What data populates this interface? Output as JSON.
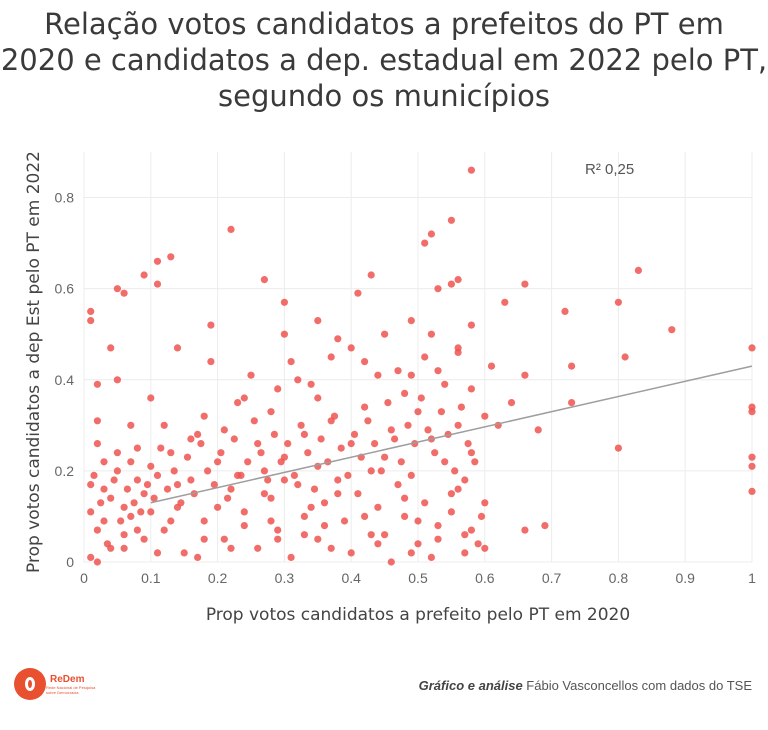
{
  "title_lines": [
    "Relação votos candidatos a prefeitos do PT em",
    "2020 e candidatos a dep. estadual em 2022 pelo PT,",
    "segundo os municípios"
  ],
  "credit": {
    "bold": "Gráfico e análise",
    "rest": " Fábio Vasconcellos com dados do TSE"
  },
  "logo": {
    "name": "ReDem",
    "sub": "Rede Nacional de Pesquisa sobre Democracia"
  },
  "colors": {
    "point": "#ef5350",
    "trend": "#9e9e9e",
    "grid": "#ececec",
    "brand": "#e8502f"
  },
  "chart_data": {
    "type": "scatter",
    "xlabel": "Prop votos candidatos a prefeito pelo PT em 2020",
    "ylabel": "Prop votos candidatos a dep Est pelo PT em 2022",
    "xlim": [
      0,
      1
    ],
    "ylim": [
      0,
      0.9
    ],
    "xticks": [
      0,
      0.1,
      0.2,
      0.3,
      0.4,
      0.5,
      0.6,
      0.7,
      0.8,
      0.9,
      1
    ],
    "xtick_labels": [
      "0",
      "0.1",
      "0.2",
      "0.3",
      "0.4",
      "0.5",
      "0.6",
      "0.7",
      "0.8",
      "0.9",
      "1"
    ],
    "yticks": [
      0,
      0.2,
      0.4,
      0.6,
      0.8
    ],
    "ytick_labels": [
      "0",
      "0.2",
      "0.4",
      "0.6",
      "0.8"
    ],
    "grid": true,
    "annotation": "R² 0,25",
    "trendline": {
      "x": [
        0.1,
        1.0
      ],
      "y": [
        0.13,
        0.43
      ]
    },
    "points": [
      [
        0.58,
        0.86
      ],
      [
        0.22,
        0.73
      ],
      [
        0.55,
        0.75
      ],
      [
        0.52,
        0.72
      ],
      [
        0.51,
        0.7
      ],
      [
        0.13,
        0.67
      ],
      [
        0.11,
        0.66
      ],
      [
        0.83,
        0.64
      ],
      [
        0.09,
        0.63
      ],
      [
        0.27,
        0.62
      ],
      [
        0.43,
        0.63
      ],
      [
        0.56,
        0.62
      ],
      [
        0.05,
        0.6
      ],
      [
        0.11,
        0.61
      ],
      [
        0.66,
        0.61
      ],
      [
        0.06,
        0.59
      ],
      [
        0.41,
        0.59
      ],
      [
        0.53,
        0.6
      ],
      [
        0.55,
        0.61
      ],
      [
        0.63,
        0.57
      ],
      [
        0.8,
        0.57
      ],
      [
        0.3,
        0.57
      ],
      [
        0.01,
        0.55
      ],
      [
        0.72,
        0.55
      ],
      [
        0.01,
        0.53
      ],
      [
        0.19,
        0.52
      ],
      [
        0.35,
        0.53
      ],
      [
        0.49,
        0.53
      ],
      [
        0.58,
        0.52
      ],
      [
        0.88,
        0.51
      ],
      [
        0.3,
        0.5
      ],
      [
        0.38,
        0.49
      ],
      [
        0.45,
        0.5
      ],
      [
        0.52,
        0.5
      ],
      [
        0.14,
        0.47
      ],
      [
        0.4,
        0.47
      ],
      [
        0.56,
        0.46
      ],
      [
        1.0,
        0.47
      ],
      [
        0.04,
        0.47
      ],
      [
        0.81,
        0.45
      ],
      [
        0.73,
        0.43
      ],
      [
        0.66,
        0.41
      ],
      [
        0.05,
        0.4
      ],
      [
        0.02,
        0.39
      ],
      [
        0.32,
        0.4
      ],
      [
        0.44,
        0.41
      ],
      [
        0.61,
        0.43
      ],
      [
        0.54,
        0.39
      ],
      [
        0.58,
        0.38
      ],
      [
        0.24,
        0.36
      ],
      [
        0.35,
        0.36
      ],
      [
        0.48,
        0.37
      ],
      [
        0.1,
        0.36
      ],
      [
        0.73,
        0.35
      ],
      [
        0.64,
        0.35
      ],
      [
        1.0,
        0.34
      ],
      [
        1.0,
        0.33
      ],
      [
        0.28,
        0.33
      ],
      [
        0.42,
        0.34
      ],
      [
        0.5,
        0.33
      ],
      [
        0.18,
        0.32
      ],
      [
        0.6,
        0.32
      ],
      [
        0.02,
        0.31
      ],
      [
        0.07,
        0.3
      ],
      [
        0.12,
        0.3
      ],
      [
        0.37,
        0.31
      ],
      [
        0.56,
        0.3
      ],
      [
        0.62,
        0.3
      ],
      [
        0.21,
        0.29
      ],
      [
        0.46,
        0.29
      ],
      [
        0.33,
        0.28
      ],
      [
        0.68,
        0.29
      ],
      [
        0.16,
        0.27
      ],
      [
        0.52,
        0.27
      ],
      [
        0.26,
        0.26
      ],
      [
        0.4,
        0.26
      ],
      [
        0.8,
        0.25
      ],
      [
        0.08,
        0.25
      ],
      [
        0.13,
        0.24
      ],
      [
        0.58,
        0.24
      ],
      [
        0.3,
        0.23
      ],
      [
        0.45,
        0.23
      ],
      [
        1.0,
        0.23
      ],
      [
        0.54,
        0.22
      ],
      [
        0.2,
        0.22
      ],
      [
        1.0,
        0.21
      ],
      [
        0.35,
        0.21
      ],
      [
        0.43,
        0.2
      ],
      [
        0.05,
        0.2
      ],
      [
        0.27,
        0.2
      ],
      [
        0.49,
        0.19
      ],
      [
        0.11,
        0.19
      ],
      [
        0.38,
        0.18
      ],
      [
        0.57,
        0.18
      ],
      [
        0.16,
        0.18
      ],
      [
        0.32,
        0.17
      ],
      [
        0.47,
        0.17
      ],
      [
        0.22,
        0.16
      ],
      [
        1.0,
        0.155
      ],
      [
        0.03,
        0.16
      ],
      [
        0.41,
        0.15
      ],
      [
        0.55,
        0.15
      ],
      [
        0.09,
        0.15
      ],
      [
        0.28,
        0.14
      ],
      [
        0.36,
        0.13
      ],
      [
        0.51,
        0.13
      ],
      [
        0.6,
        0.13
      ],
      [
        0.14,
        0.12
      ],
      [
        0.44,
        0.12
      ],
      [
        0.24,
        0.11
      ],
      [
        0.33,
        0.1
      ],
      [
        0.48,
        0.1
      ],
      [
        0.07,
        0.1
      ],
      [
        0.18,
        0.09
      ],
      [
        0.39,
        0.09
      ],
      [
        0.53,
        0.08
      ],
      [
        0.69,
        0.08
      ],
      [
        0.66,
        0.07
      ],
      [
        0.29,
        0.07
      ],
      [
        0.12,
        0.07
      ],
      [
        0.43,
        0.06
      ],
      [
        0.57,
        0.06
      ],
      [
        0.21,
        0.05
      ],
      [
        0.35,
        0.05
      ],
      [
        0.5,
        0.04
      ],
      [
        0.59,
        0.04
      ],
      [
        0.6,
        0.03
      ],
      [
        0.26,
        0.03
      ],
      [
        0.04,
        0.03
      ],
      [
        0.4,
        0.02
      ],
      [
        0.15,
        0.02
      ],
      [
        0.52,
        0.01
      ],
      [
        0.31,
        0.01
      ],
      [
        0.01,
        0.01
      ],
      [
        0.02,
        0.0
      ],
      [
        0.46,
        0.0
      ],
      [
        0.09,
        0.05
      ],
      [
        0.06,
        0.12
      ],
      [
        0.03,
        0.22
      ],
      [
        0.02,
        0.26
      ],
      [
        0.05,
        0.24
      ],
      [
        0.01,
        0.17
      ],
      [
        0.04,
        0.14
      ],
      [
        0.03,
        0.09
      ],
      [
        0.02,
        0.07
      ],
      [
        0.06,
        0.06
      ],
      [
        0.08,
        0.18
      ],
      [
        0.1,
        0.21
      ],
      [
        0.07,
        0.22
      ],
      [
        0.01,
        0.11
      ],
      [
        0.015,
        0.19
      ],
      [
        0.025,
        0.13
      ],
      [
        0.035,
        0.04
      ],
      [
        0.045,
        0.18
      ],
      [
        0.055,
        0.09
      ],
      [
        0.065,
        0.16
      ],
      [
        0.075,
        0.13
      ],
      [
        0.085,
        0.11
      ],
      [
        0.095,
        0.17
      ],
      [
        0.105,
        0.14
      ],
      [
        0.115,
        0.25
      ],
      [
        0.125,
        0.16
      ],
      [
        0.135,
        0.2
      ],
      [
        0.145,
        0.13
      ],
      [
        0.155,
        0.23
      ],
      [
        0.165,
        0.15
      ],
      [
        0.175,
        0.26
      ],
      [
        0.185,
        0.2
      ],
      [
        0.195,
        0.17
      ],
      [
        0.205,
        0.24
      ],
      [
        0.215,
        0.14
      ],
      [
        0.225,
        0.27
      ],
      [
        0.235,
        0.19
      ],
      [
        0.245,
        0.22
      ],
      [
        0.255,
        0.31
      ],
      [
        0.265,
        0.24
      ],
      [
        0.275,
        0.18
      ],
      [
        0.285,
        0.28
      ],
      [
        0.295,
        0.22
      ],
      [
        0.305,
        0.26
      ],
      [
        0.315,
        0.19
      ],
      [
        0.325,
        0.3
      ],
      [
        0.335,
        0.24
      ],
      [
        0.345,
        0.16
      ],
      [
        0.355,
        0.27
      ],
      [
        0.365,
        0.22
      ],
      [
        0.375,
        0.32
      ],
      [
        0.385,
        0.25
      ],
      [
        0.395,
        0.19
      ],
      [
        0.405,
        0.28
      ],
      [
        0.415,
        0.23
      ],
      [
        0.425,
        0.31
      ],
      [
        0.435,
        0.26
      ],
      [
        0.445,
        0.2
      ],
      [
        0.455,
        0.35
      ],
      [
        0.465,
        0.27
      ],
      [
        0.475,
        0.22
      ],
      [
        0.485,
        0.3
      ],
      [
        0.495,
        0.26
      ],
      [
        0.505,
        0.36
      ],
      [
        0.515,
        0.29
      ],
      [
        0.525,
        0.24
      ],
      [
        0.535,
        0.33
      ],
      [
        0.545,
        0.28
      ],
      [
        0.555,
        0.2
      ],
      [
        0.565,
        0.34
      ],
      [
        0.575,
        0.26
      ],
      [
        0.585,
        0.22
      ],
      [
        0.595,
        0.1
      ],
      [
        0.47,
        0.42
      ],
      [
        0.42,
        0.44
      ],
      [
        0.37,
        0.45
      ],
      [
        0.29,
        0.38
      ],
      [
        0.25,
        0.41
      ],
      [
        0.19,
        0.44
      ],
      [
        0.53,
        0.42
      ],
      [
        0.49,
        0.41
      ],
      [
        0.51,
        0.45
      ],
      [
        0.56,
        0.47
      ],
      [
        0.34,
        0.39
      ],
      [
        0.31,
        0.44
      ],
      [
        0.23,
        0.35
      ],
      [
        0.17,
        0.28
      ],
      [
        0.28,
        0.09
      ],
      [
        0.37,
        0.03
      ],
      [
        0.45,
        0.06
      ],
      [
        0.5,
        0.09
      ],
      [
        0.55,
        0.11
      ],
      [
        0.58,
        0.07
      ],
      [
        0.33,
        0.06
      ],
      [
        0.24,
        0.08
      ],
      [
        0.18,
        0.05
      ],
      [
        0.13,
        0.09
      ],
      [
        0.2,
        0.12
      ],
      [
        0.27,
        0.15
      ],
      [
        0.34,
        0.12
      ],
      [
        0.42,
        0.1
      ],
      [
        0.48,
        0.14
      ],
      [
        0.56,
        0.16
      ],
      [
        0.38,
        0.15
      ],
      [
        0.3,
        0.18
      ],
      [
        0.23,
        0.19
      ],
      [
        0.14,
        0.17
      ],
      [
        0.1,
        0.11
      ],
      [
        0.08,
        0.07
      ],
      [
        0.06,
        0.03
      ],
      [
        0.11,
        0.02
      ],
      [
        0.17,
        0.01
      ],
      [
        0.22,
        0.03
      ],
      [
        0.29,
        0.05
      ],
      [
        0.36,
        0.08
      ],
      [
        0.44,
        0.04
      ],
      [
        0.53,
        0.05
      ],
      [
        0.57,
        0.02
      ],
      [
        0.49,
        0.02
      ]
    ]
  }
}
